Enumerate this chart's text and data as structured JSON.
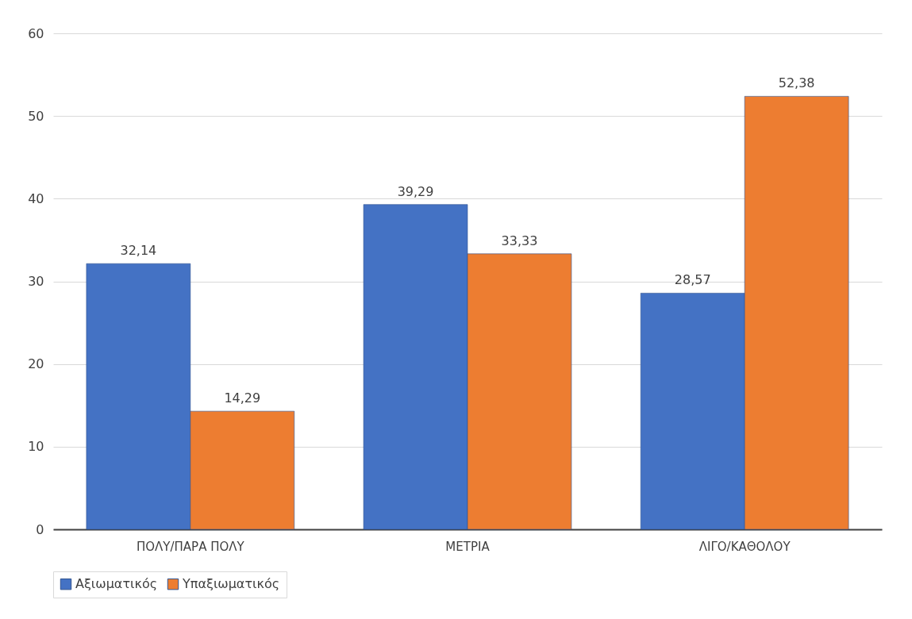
{
  "chart_data": {
    "type": "bar",
    "categories": [
      "ΠΟΛΥ/ΠΑΡΑ ΠΟΛΥ",
      "ΜΕΤΡΙΑ",
      "ΛΙΓΟ/ΚΑΘΟΛΟΥ"
    ],
    "series": [
      {
        "name": "Αξιωματικός",
        "color": "#4472c4",
        "values": [
          32.14,
          39.29,
          28.57
        ],
        "value_labels": [
          "32,14",
          "39,29",
          "28,57"
        ]
      },
      {
        "name": "Υπαξιωματικός",
        "color": "#ed7d31",
        "values": [
          14.29,
          33.33,
          52.38
        ],
        "value_labels": [
          "14,29",
          "33,33",
          "52,38"
        ]
      }
    ],
    "ylim": [
      0,
      60
    ],
    "yticks": [
      0,
      10,
      20,
      30,
      40,
      50,
      60
    ],
    "grid": "y",
    "legend": "bottom"
  }
}
